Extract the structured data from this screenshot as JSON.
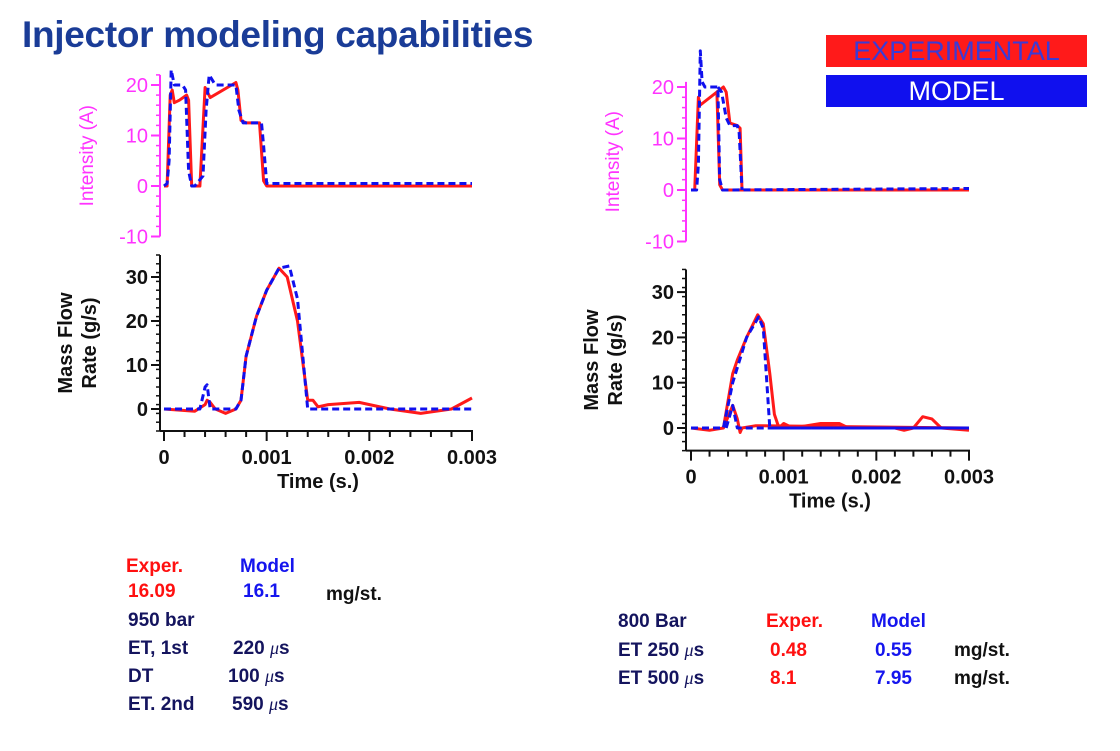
{
  "title": "Injector modeling capabilities",
  "legend": {
    "experimental": "EXPERIMENTAL",
    "model": "MODEL"
  },
  "colors": {
    "experimental": "#ff1a1a",
    "model": "#1010ee",
    "intensity_axis": "#ff33ff",
    "title": "#1a3c97"
  },
  "left_notes": {
    "exper_label": "Exper.",
    "model_label": "Model",
    "exper_value": "16.09",
    "model_value": "16.1",
    "unit": "mg/st.",
    "pressure": "950 bar",
    "et1_label": "ET, 1st",
    "et1_value": "220",
    "dt_label": "DT",
    "dt_value": "100",
    "et2_label": "ET. 2nd",
    "et2_value": "590",
    "mu": "μ",
    "s": "s"
  },
  "right_notes": {
    "pressure": "800 Bar",
    "exper_label": "Exper.",
    "model_label": "Model",
    "row1_label": "ET 250",
    "row1_exper": "0.48",
    "row1_model": "0.55",
    "row2_label": "ET 500",
    "row2_exper": "8.1",
    "row2_model": "7.95",
    "unit": "mg/st.",
    "mu": "μ",
    "s": "s"
  },
  "chart_data": [
    {
      "type": "line",
      "ylabel": "Intensity (A)",
      "ylim": [
        -10,
        22
      ],
      "yticks": [
        -10,
        0,
        10,
        20
      ],
      "xlim": [
        0,
        0.003
      ],
      "series": [
        {
          "name": "EXPERIMENTAL",
          "style": "solid",
          "points": [
            [
              0,
              0
            ],
            [
              3e-05,
              0
            ],
            [
              6e-05,
              18
            ],
            [
              8e-05,
              19
            ],
            [
              0.0001,
              16.5
            ],
            [
              0.00015,
              17
            ],
            [
              0.00022,
              18
            ],
            [
              0.00024,
              17
            ],
            [
              0.00027,
              0
            ],
            [
              0.00035,
              0
            ],
            [
              0.0004,
              19.5
            ],
            [
              0.00045,
              17.5
            ],
            [
              0.0007,
              20.5
            ],
            [
              0.00072,
              19
            ],
            [
              0.00075,
              13
            ],
            [
              0.0008,
              12.5
            ],
            [
              0.00093,
              12.5
            ],
            [
              0.00097,
              1
            ],
            [
              0.001,
              0
            ],
            [
              0.003,
              0
            ]
          ]
        },
        {
          "name": "MODEL",
          "style": "dashed",
          "points": [
            [
              0,
              0
            ],
            [
              3e-05,
              0.5
            ],
            [
              5e-05,
              5
            ],
            [
              7e-05,
              23
            ],
            [
              0.0001,
              20
            ],
            [
              0.00018,
              20
            ],
            [
              0.00021,
              19
            ],
            [
              0.00024,
              3
            ],
            [
              0.00027,
              0
            ],
            [
              0.0003,
              0
            ],
            [
              0.00038,
              2
            ],
            [
              0.00041,
              15
            ],
            [
              0.00044,
              22
            ],
            [
              0.0005,
              20
            ],
            [
              0.0007,
              20
            ],
            [
              0.00073,
              15
            ],
            [
              0.00077,
              12.5
            ],
            [
              0.00095,
              12.5
            ],
            [
              0.00097,
              8
            ],
            [
              0.001,
              0.5
            ],
            [
              0.003,
              0.5
            ]
          ]
        }
      ]
    },
    {
      "type": "line",
      "ylabel": "Mass Flow Rate  (g/s)",
      "xlabel": "Time (s.)",
      "ylim": [
        -5,
        35
      ],
      "yticks": [
        0,
        10,
        20,
        30
      ],
      "xlim": [
        0,
        0.003
      ],
      "xticks": [
        "0",
        "0.001",
        "0.002",
        "0.003"
      ],
      "series": [
        {
          "name": "EXPERIMENTAL",
          "style": "solid",
          "points": [
            [
              0,
              0
            ],
            [
              0.0003,
              -0.5
            ],
            [
              0.0004,
              1
            ],
            [
              0.00042,
              2
            ],
            [
              0.00045,
              1.5
            ],
            [
              0.0005,
              0
            ],
            [
              0.0006,
              -1
            ],
            [
              0.0007,
              0
            ],
            [
              0.00075,
              2
            ],
            [
              0.0008,
              12
            ],
            [
              0.0009,
              21
            ],
            [
              0.001,
              27
            ],
            [
              0.00112,
              32
            ],
            [
              0.0012,
              30
            ],
            [
              0.0013,
              20
            ],
            [
              0.0014,
              2
            ],
            [
              0.00145,
              2
            ],
            [
              0.0015,
              0.5
            ],
            [
              0.0016,
              1
            ],
            [
              0.0019,
              1.5
            ],
            [
              0.0022,
              0
            ],
            [
              0.0025,
              -1
            ],
            [
              0.0028,
              0
            ],
            [
              0.003,
              2.5
            ]
          ]
        },
        {
          "name": "MODEL",
          "style": "dashed",
          "points": [
            [
              0,
              0
            ],
            [
              0.00035,
              0
            ],
            [
              0.0004,
              5
            ],
            [
              0.00042,
              5.5
            ],
            [
              0.00045,
              0
            ],
            [
              0.0007,
              0
            ],
            [
              0.00075,
              2
            ],
            [
              0.0008,
              12
            ],
            [
              0.0009,
              21
            ],
            [
              0.001,
              27
            ],
            [
              0.00112,
              32
            ],
            [
              0.00122,
              32.5
            ],
            [
              0.0013,
              25
            ],
            [
              0.0014,
              0
            ],
            [
              0.003,
              0
            ]
          ]
        }
      ]
    },
    {
      "type": "line",
      "ylabel": "Intensity (A)",
      "ylim": [
        -10,
        21
      ],
      "yticks": [
        -10,
        0,
        10,
        20
      ],
      "xlim": [
        0,
        0.003
      ],
      "series": [
        {
          "name": "EXPERIMENTAL",
          "style": "solid",
          "points": [
            [
              0,
              0
            ],
            [
              4e-05,
              0
            ],
            [
              8e-05,
              18
            ],
            [
              0.0001,
              16.5
            ],
            [
              0.00028,
              19
            ],
            [
              0.00031,
              1
            ],
            [
              0.00034,
              0
            ],
            [
              0.003,
              0
            ]
          ]
        },
        {
          "name": "EXPERIMENTAL",
          "style": "solid",
          "points": [
            [
              0.00028,
              19
            ],
            [
              0.00035,
              20
            ],
            [
              0.00038,
              19
            ],
            [
              0.00042,
              13
            ],
            [
              0.0005,
              12.5
            ],
            [
              0.00053,
              12
            ],
            [
              0.00055,
              0
            ],
            [
              0.003,
              0
            ]
          ]
        },
        {
          "name": "MODEL",
          "style": "dashed",
          "points": [
            [
              0,
              0
            ],
            [
              6e-05,
              0
            ],
            [
              8e-05,
              5
            ],
            [
              0.0001,
              27
            ],
            [
              0.00012,
              21
            ],
            [
              0.00015,
              20
            ],
            [
              0.00029,
              20
            ],
            [
              0.00031,
              2
            ],
            [
              0.00034,
              0
            ],
            [
              0.003,
              0.3
            ]
          ]
        },
        {
          "name": "MODEL",
          "style": "dashed",
          "points": [
            [
              0.00029,
              20
            ],
            [
              0.00033,
              19
            ],
            [
              0.00038,
              14
            ],
            [
              0.00042,
              12.5
            ],
            [
              0.0005,
              12.5
            ],
            [
              0.00052,
              11
            ],
            [
              0.00055,
              0
            ]
          ]
        }
      ]
    },
    {
      "type": "line",
      "ylabel": "Mass Flow Rate  (g/s)",
      "xlabel": "Time (s.)",
      "ylim": [
        -5,
        35
      ],
      "yticks": [
        0,
        10,
        20,
        30
      ],
      "xlim": [
        0,
        0.003
      ],
      "xticks": [
        "0",
        "0.001",
        "0.002",
        "0.003"
      ],
      "series": [
        {
          "name": "EXPERIMENTAL",
          "style": "solid",
          "points": [
            [
              0,
              0
            ],
            [
              0.0002,
              -0.5
            ],
            [
              0.00035,
              0
            ],
            [
              0.00045,
              12
            ],
            [
              0.0005,
              15
            ],
            [
              0.0006,
              20
            ],
            [
              0.00072,
              25
            ],
            [
              0.00078,
              23
            ],
            [
              0.00085,
              12
            ],
            [
              0.0009,
              3
            ],
            [
              0.00095,
              0
            ],
            [
              0.001,
              1
            ],
            [
              0.0011,
              0
            ],
            [
              0.0014,
              1
            ],
            [
              0.0016,
              1
            ],
            [
              0.0017,
              0
            ],
            [
              0.0022,
              0
            ],
            [
              0.0023,
              -0.5
            ],
            [
              0.0024,
              0
            ],
            [
              0.0025,
              2.5
            ],
            [
              0.0026,
              2
            ],
            [
              0.0027,
              0
            ],
            [
              0.003,
              -0.5
            ]
          ]
        },
        {
          "name": "EXPERIMENTAL",
          "style": "solid",
          "points": [
            [
              0.00035,
              0
            ],
            [
              0.00045,
              5
            ],
            [
              0.0005,
              2
            ],
            [
              0.00053,
              -1
            ],
            [
              0.00055,
              0
            ],
            [
              0.0007,
              0.5
            ],
            [
              0.003,
              0
            ]
          ]
        },
        {
          "name": "MODEL",
          "style": "dashed",
          "points": [
            [
              0,
              0
            ],
            [
              0.00035,
              0
            ],
            [
              0.00045,
              10
            ],
            [
              0.0006,
              20
            ],
            [
              0.00073,
              24.5
            ],
            [
              0.00078,
              22
            ],
            [
              0.00085,
              0
            ],
            [
              0.003,
              0
            ]
          ]
        },
        {
          "name": "MODEL",
          "style": "dashed",
          "points": [
            [
              0.00038,
              0
            ],
            [
              0.00045,
              5
            ],
            [
              0.0005,
              0
            ],
            [
              0.003,
              0
            ]
          ]
        }
      ]
    }
  ]
}
